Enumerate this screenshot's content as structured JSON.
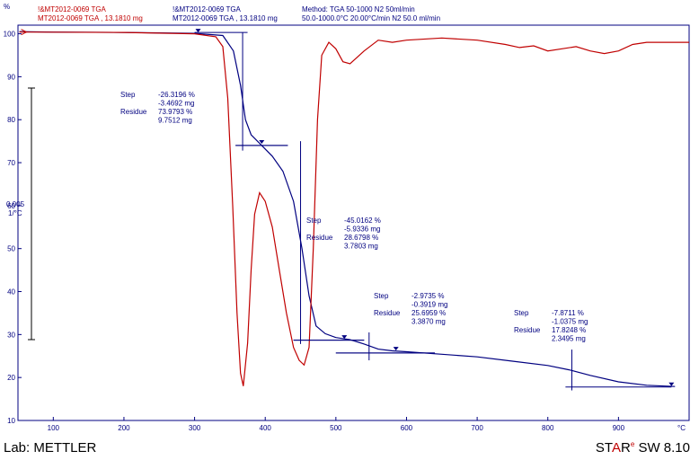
{
  "header": {
    "red_name": "!&MT2012-0069 TGA",
    "red_sample": "MT2012-0069 TGA , 13.1810 mg",
    "blue_name": "!&MT2012-0069 TGA",
    "blue_sample": "MT2012-0069 TGA , 13.1810 mg",
    "method": "Method: TGA 50-1000  N2 50ml/min",
    "conditions": "50.0-1000.0°C 20.00°C/min       N2 50.0 ml/min"
  },
  "footer": {
    "lab": "Lab: METTLER",
    "star_st": "ST",
    "star_a": "A",
    "star_r": "R",
    "star_e": "e",
    "version": "SW 8.10"
  },
  "chart_data": {
    "type": "line",
    "xlabel": "°C",
    "ylabel": "%",
    "xlim": [
      50,
      1000
    ],
    "ylim": [
      10,
      102
    ],
    "x_ticks": [
      "100",
      "200",
      "300",
      "400",
      "500",
      "600",
      "700",
      "800",
      "900"
    ],
    "y_ticks": [
      "10",
      "20",
      "30",
      "40",
      "50",
      "60",
      "70",
      "80",
      "90",
      "100"
    ],
    "deriv_scale_label": "0.005",
    "deriv_scale_unit": "1/°C",
    "grid": false,
    "series": [
      {
        "name": "blue",
        "color": "#000080",
        "points": [
          [
            52,
            100.5
          ],
          [
            100,
            100.4
          ],
          [
            200,
            100.3
          ],
          [
            300,
            100.1
          ],
          [
            340,
            99.6
          ],
          [
            355,
            96
          ],
          [
            365,
            88
          ],
          [
            372,
            80
          ],
          [
            380,
            76.5
          ],
          [
            395,
            74
          ],
          [
            410,
            71.5
          ],
          [
            425,
            68
          ],
          [
            440,
            61
          ],
          [
            452,
            50
          ],
          [
            462,
            39
          ],
          [
            472,
            32
          ],
          [
            485,
            30.2
          ],
          [
            500,
            29.3
          ],
          [
            520,
            28.8
          ],
          [
            540,
            27.8
          ],
          [
            560,
            26.6
          ],
          [
            580,
            26.2
          ],
          [
            600,
            26.0
          ],
          [
            650,
            25.4
          ],
          [
            700,
            24.8
          ],
          [
            750,
            23.8
          ],
          [
            800,
            22.8
          ],
          [
            830,
            21.8
          ],
          [
            860,
            20.5
          ],
          [
            900,
            19.0
          ],
          [
            940,
            18.2
          ],
          [
            980,
            17.9
          ]
        ]
      },
      {
        "name": "red",
        "color": "#c00000",
        "points": [
          [
            52,
            100.4
          ],
          [
            200,
            100.3
          ],
          [
            300,
            100.0
          ],
          [
            330,
            99.3
          ],
          [
            340,
            97
          ],
          [
            347,
            85
          ],
          [
            354,
            60
          ],
          [
            360,
            35
          ],
          [
            365,
            21
          ],
          [
            369,
            18
          ],
          [
            375,
            28
          ],
          [
            380,
            45
          ],
          [
            385,
            58
          ],
          [
            392,
            63
          ],
          [
            400,
            61
          ],
          [
            410,
            55
          ],
          [
            420,
            45
          ],
          [
            430,
            35
          ],
          [
            440,
            27
          ],
          [
            448,
            24
          ],
          [
            455,
            22.9
          ],
          [
            462,
            27
          ],
          [
            468,
            50
          ],
          [
            474,
            80
          ],
          [
            480,
            95
          ],
          [
            490,
            98
          ],
          [
            500,
            96.5
          ],
          [
            510,
            93.5
          ],
          [
            520,
            93
          ],
          [
            540,
            96
          ],
          [
            560,
            98.5
          ],
          [
            580,
            98
          ],
          [
            600,
            98.5
          ],
          [
            650,
            99
          ],
          [
            700,
            98.5
          ],
          [
            740,
            97.5
          ],
          [
            760,
            96.8
          ],
          [
            780,
            97.2
          ],
          [
            800,
            96
          ],
          [
            820,
            96.5
          ],
          [
            840,
            97
          ],
          [
            860,
            96
          ],
          [
            880,
            95.4
          ],
          [
            900,
            96
          ],
          [
            920,
            97.5
          ],
          [
            940,
            98
          ],
          [
            980,
            98
          ],
          [
            1000,
            98
          ]
        ]
      }
    ],
    "annotations": [
      {
        "lines": [
          {
            "label": "Step",
            "value": "-26.3196  %"
          },
          {
            "label": "",
            "value": "-3.4692 mg"
          },
          {
            "label": "Residue",
            "value": "73.9793  %"
          },
          {
            "label": "",
            "value": "9.7512 mg"
          }
        ]
      },
      {
        "lines": [
          {
            "label": "Step",
            "value": "-45.0162  %"
          },
          {
            "label": "",
            "value": "-5.9336 mg"
          },
          {
            "label": "Residue",
            "value": "28.6798  %"
          },
          {
            "label": "",
            "value": "3.7803 mg"
          }
        ]
      },
      {
        "lines": [
          {
            "label": "Step",
            "value": "-2.9735  %"
          },
          {
            "label": "",
            "value": "-0.3919 mg"
          },
          {
            "label": "Residue",
            "value": "25.6959  %"
          },
          {
            "label": "",
            "value": "3.3870 mg"
          }
        ]
      },
      {
        "lines": [
          {
            "label": "Step",
            "value": "-7.8711  %"
          },
          {
            "label": "",
            "value": "-1.0375 mg"
          },
          {
            "label": "Residue",
            "value": "17.8248  %"
          },
          {
            "label": "",
            "value": "2.3495 mg"
          }
        ]
      }
    ]
  }
}
